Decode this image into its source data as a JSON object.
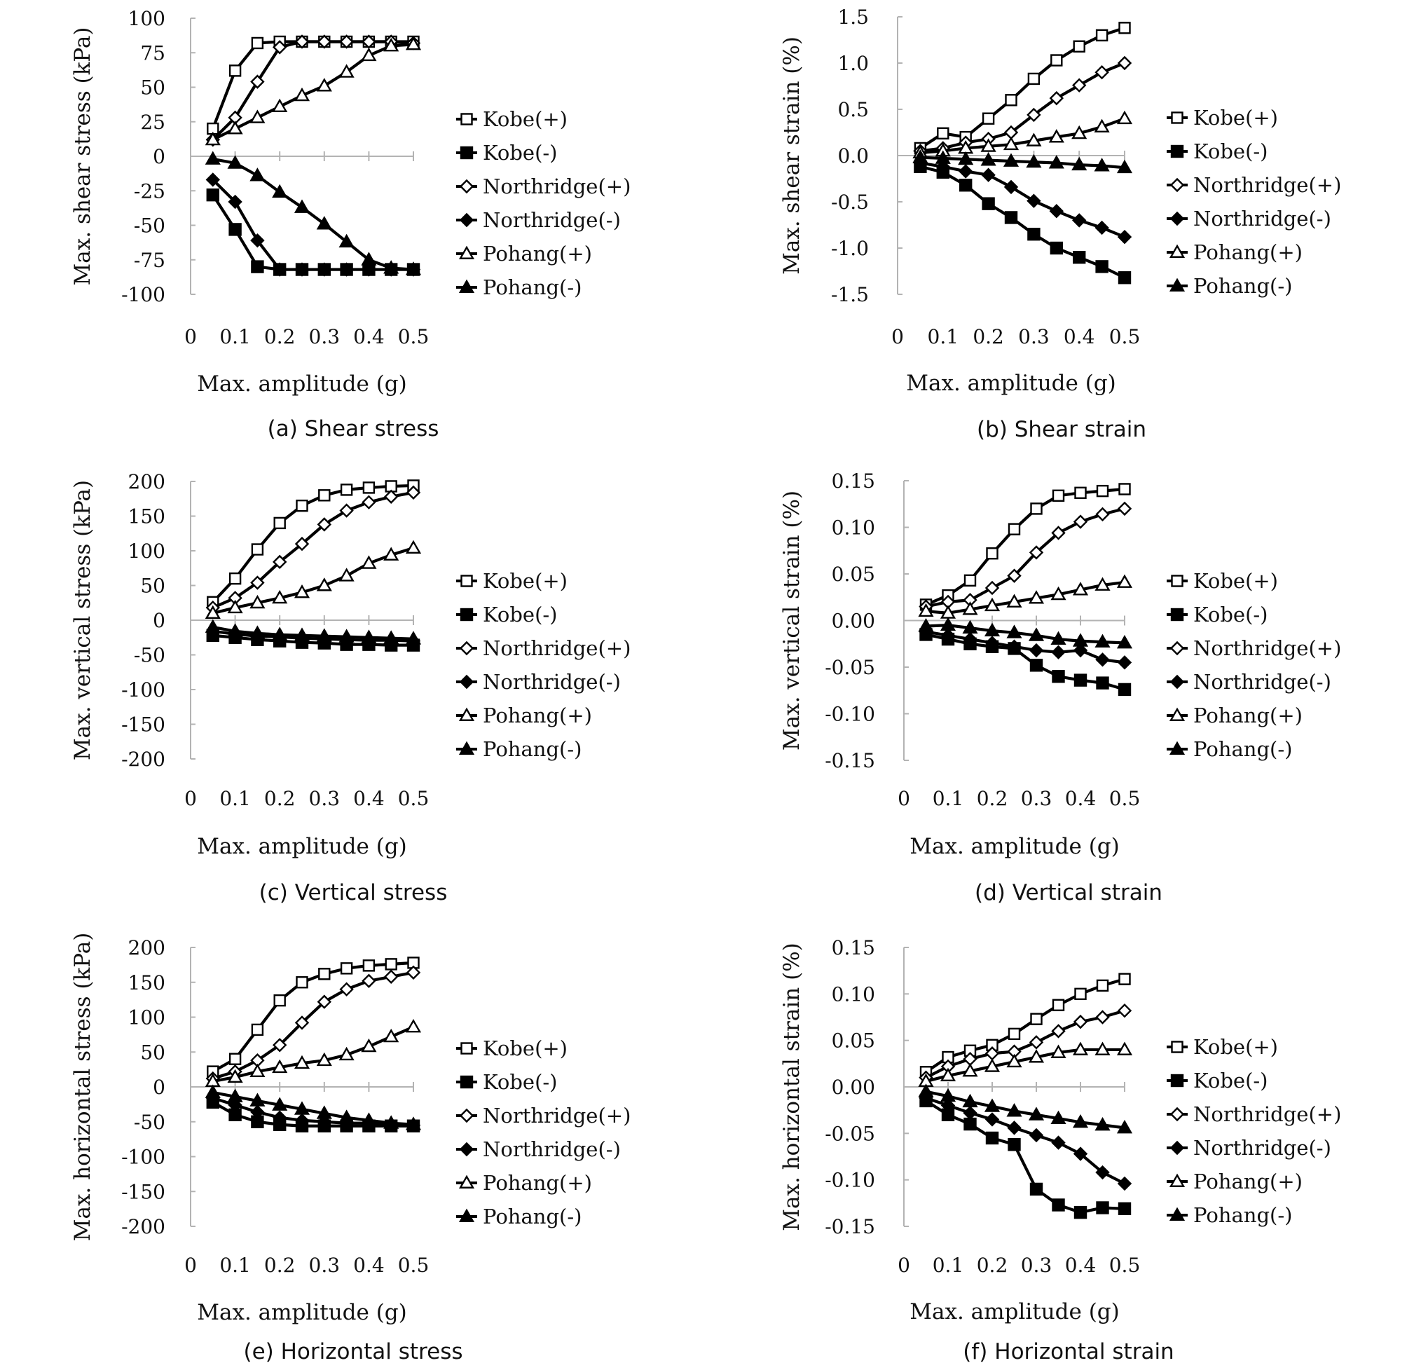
{
  "chart_data": [
    {
      "type": "line",
      "caption": "(a) Shear stress",
      "xlabel": "Max. amplitude (g)",
      "ylabel": "Max. shear stress (kPa)",
      "xlim": [
        0,
        0.5
      ],
      "ylim": [
        -100,
        100
      ],
      "xticks": [
        "0",
        "0.1",
        "0.2",
        "0.3",
        "0.4",
        "0.5"
      ],
      "yticks": [
        "100",
        "75",
        "50",
        "25",
        "0",
        "-25",
        "-50",
        "-75",
        "-100"
      ],
      "x": [
        0.05,
        0.1,
        0.15,
        0.2,
        0.25,
        0.3,
        0.35,
        0.4,
        0.45,
        0.5
      ],
      "legend_position": "right",
      "series": [
        {
          "name": "Kobe(+)",
          "marker": "square-open",
          "values": [
            20,
            62,
            82,
            83,
            83,
            83,
            83,
            83,
            83,
            83
          ]
        },
        {
          "name": "Kobe(-)",
          "marker": "square-filled",
          "values": [
            -28,
            -53,
            -80,
            -82,
            -82,
            -82,
            -82,
            -82,
            -82,
            -82
          ]
        },
        {
          "name": "Northridge(+)",
          "marker": "diamond-open",
          "values": [
            12,
            28,
            54,
            79,
            83,
            83,
            83,
            83,
            83,
            82
          ]
        },
        {
          "name": "Northridge(-)",
          "marker": "diamond-filled",
          "values": [
            -17,
            -33,
            -61,
            -82,
            -82,
            -82,
            -82,
            -82,
            -82,
            -82
          ]
        },
        {
          "name": "Pohang(+)",
          "marker": "triangle-open",
          "values": [
            12,
            20,
            28,
            36,
            44,
            51,
            61,
            73,
            80,
            81
          ]
        },
        {
          "name": "Pohang(-)",
          "marker": "triangle-filled",
          "values": [
            -2,
            -5,
            -14,
            -26,
            -37,
            -49,
            -62,
            -75,
            -81,
            -82
          ]
        }
      ]
    },
    {
      "type": "line",
      "caption": "(b) Shear strain",
      "xlabel": "Max. amplitude (g)",
      "ylabel": "Max. shear strain (%)",
      "xlim": [
        0,
        0.5
      ],
      "ylim": [
        -1.5,
        1.5
      ],
      "xticks": [
        "0",
        "0.1",
        "0.2",
        "0.3",
        "0.4",
        "0.5"
      ],
      "yticks": [
        "1.5",
        "1.0",
        "0.5",
        "0.0",
        "-0.5",
        "-1.0",
        "-1.5"
      ],
      "x": [
        0.05,
        0.1,
        0.15,
        0.2,
        0.25,
        0.3,
        0.35,
        0.4,
        0.45,
        0.5
      ],
      "legend_position": "right",
      "series": [
        {
          "name": "Kobe(+)",
          "marker": "square-open",
          "values": [
            0.08,
            0.24,
            0.2,
            0.4,
            0.6,
            0.83,
            1.03,
            1.18,
            1.3,
            1.38
          ]
        },
        {
          "name": "Kobe(-)",
          "marker": "square-filled",
          "values": [
            -0.12,
            -0.18,
            -0.32,
            -0.52,
            -0.67,
            -0.85,
            -1.0,
            -1.1,
            -1.2,
            -1.32
          ]
        },
        {
          "name": "Northridge(+)",
          "marker": "diamond-open",
          "values": [
            0.05,
            0.08,
            0.14,
            0.18,
            0.25,
            0.44,
            0.62,
            0.76,
            0.9,
            1.0
          ]
        },
        {
          "name": "Northridge(-)",
          "marker": "diamond-filled",
          "values": [
            -0.08,
            -0.12,
            -0.17,
            -0.21,
            -0.34,
            -0.49,
            -0.6,
            -0.7,
            -0.78,
            -0.88
          ]
        },
        {
          "name": "Pohang(+)",
          "marker": "triangle-open",
          "values": [
            0.03,
            0.05,
            0.08,
            0.1,
            0.12,
            0.16,
            0.2,
            0.24,
            0.31,
            0.4
          ]
        },
        {
          "name": "Pohang(-)",
          "marker": "triangle-filled",
          "values": [
            -0.02,
            -0.03,
            -0.04,
            -0.05,
            -0.06,
            -0.07,
            -0.08,
            -0.1,
            -0.11,
            -0.13
          ]
        }
      ]
    },
    {
      "type": "line",
      "caption": "(c) Vertical stress",
      "xlabel": "Max. amplitude (g)",
      "ylabel": "Max. vertical stress (kPa)",
      "xlim": [
        0,
        0.5
      ],
      "ylim": [
        -200,
        200
      ],
      "xticks": [
        "0",
        "0.1",
        "0.2",
        "0.3",
        "0.4",
        "0.5"
      ],
      "yticks": [
        "200",
        "150",
        "100",
        "50",
        "0",
        "-50",
        "-100",
        "-150",
        "-200"
      ],
      "x": [
        0.05,
        0.1,
        0.15,
        0.2,
        0.25,
        0.3,
        0.35,
        0.4,
        0.45,
        0.5
      ],
      "legend_position": "right",
      "series": [
        {
          "name": "Kobe(+)",
          "marker": "square-open",
          "values": [
            26,
            60,
            102,
            140,
            165,
            180,
            188,
            191,
            193,
            194
          ]
        },
        {
          "name": "Kobe(-)",
          "marker": "square-filled",
          "values": [
            -22,
            -25,
            -28,
            -30,
            -32,
            -33,
            -35,
            -35,
            -36,
            -36
          ]
        },
        {
          "name": "Northridge(+)",
          "marker": "diamond-open",
          "values": [
            18,
            32,
            54,
            84,
            110,
            138,
            158,
            170,
            178,
            184
          ]
        },
        {
          "name": "Northridge(-)",
          "marker": "diamond-filled",
          "values": [
            -16,
            -20,
            -23,
            -24,
            -26,
            -27,
            -28,
            -29,
            -29,
            -30
          ]
        },
        {
          "name": "Pohang(+)",
          "marker": "triangle-open",
          "values": [
            10,
            18,
            25,
            32,
            40,
            50,
            64,
            82,
            94,
            104
          ]
        },
        {
          "name": "Pohang(-)",
          "marker": "triangle-filled",
          "values": [
            -10,
            -16,
            -19,
            -21,
            -22,
            -23,
            -24,
            -25,
            -26,
            -27
          ]
        }
      ]
    },
    {
      "type": "line",
      "caption": "(d) Vertical strain",
      "xlabel": "Max. amplitude (g)",
      "ylabel": "Max. vertical strain (%)",
      "xlim": [
        0,
        0.5
      ],
      "ylim": [
        -0.15,
        0.15
      ],
      "xticks": [
        "0",
        "0.1",
        "0.2",
        "0.3",
        "0.4",
        "0.5"
      ],
      "yticks": [
        "0.15",
        "0.10",
        "0.05",
        "0.00",
        "-0.05",
        "-0.10",
        "-0.15"
      ],
      "x": [
        0.05,
        0.1,
        0.15,
        0.2,
        0.25,
        0.3,
        0.35,
        0.4,
        0.45,
        0.5
      ],
      "legend_position": "right",
      "series": [
        {
          "name": "Kobe(+)",
          "marker": "square-open",
          "values": [
            0.017,
            0.027,
            0.043,
            0.072,
            0.098,
            0.12,
            0.134,
            0.137,
            0.139,
            0.141
          ]
        },
        {
          "name": "Kobe(-)",
          "marker": "square-filled",
          "values": [
            -0.015,
            -0.02,
            -0.025,
            -0.028,
            -0.03,
            -0.048,
            -0.06,
            -0.064,
            -0.067,
            -0.074
          ]
        },
        {
          "name": "Northridge(+)",
          "marker": "diamond-open",
          "values": [
            0.015,
            0.02,
            0.022,
            0.035,
            0.048,
            0.073,
            0.094,
            0.106,
            0.114,
            0.12
          ]
        },
        {
          "name": "Northridge(-)",
          "marker": "diamond-filled",
          "values": [
            -0.012,
            -0.016,
            -0.02,
            -0.024,
            -0.028,
            -0.032,
            -0.034,
            -0.032,
            -0.042,
            -0.045
          ]
        },
        {
          "name": "Pohang(+)",
          "marker": "triangle-open",
          "values": [
            0.01,
            0.008,
            0.012,
            0.016,
            0.02,
            0.024,
            0.028,
            0.033,
            0.038,
            0.041
          ]
        },
        {
          "name": "Pohang(-)",
          "marker": "triangle-filled",
          "values": [
            -0.006,
            -0.005,
            -0.008,
            -0.011,
            -0.013,
            -0.016,
            -0.02,
            -0.022,
            -0.023,
            -0.024
          ]
        }
      ]
    },
    {
      "type": "line",
      "caption": "(e) Horizontal stress",
      "xlabel": "Max. amplitude (g)",
      "ylabel": "Max. horizontal stress (kPa)",
      "xlim": [
        0,
        0.5
      ],
      "ylim": [
        -200,
        200
      ],
      "xticks": [
        "0",
        "0.1",
        "0.2",
        "0.3",
        "0.4",
        "0.5"
      ],
      "yticks": [
        "200",
        "150",
        "100",
        "50",
        "0",
        "-50",
        "-100",
        "-150",
        "-200"
      ],
      "x": [
        0.05,
        0.1,
        0.15,
        0.2,
        0.25,
        0.3,
        0.35,
        0.4,
        0.45,
        0.5
      ],
      "legend_position": "right",
      "series": [
        {
          "name": "Kobe(+)",
          "marker": "square-open",
          "values": [
            22,
            40,
            82,
            124,
            150,
            162,
            170,
            174,
            176,
            178
          ]
        },
        {
          "name": "Kobe(-)",
          "marker": "square-filled",
          "values": [
            -22,
            -40,
            -50,
            -54,
            -56,
            -56,
            -56,
            -56,
            -56,
            -56
          ]
        },
        {
          "name": "Northridge(+)",
          "marker": "diamond-open",
          "values": [
            12,
            22,
            38,
            60,
            92,
            122,
            140,
            152,
            158,
            164
          ]
        },
        {
          "name": "Northridge(-)",
          "marker": "diamond-filled",
          "values": [
            -16,
            -26,
            -36,
            -44,
            -48,
            -50,
            -52,
            -52,
            -54,
            -55
          ]
        },
        {
          "name": "Pohang(+)",
          "marker": "triangle-open",
          "values": [
            8,
            14,
            22,
            28,
            34,
            38,
            46,
            58,
            72,
            86
          ]
        },
        {
          "name": "Pohang(-)",
          "marker": "triangle-filled",
          "values": [
            -8,
            -14,
            -20,
            -26,
            -32,
            -38,
            -44,
            -48,
            -52,
            -54
          ]
        }
      ]
    },
    {
      "type": "line",
      "caption": "(f) Horizontal strain",
      "xlabel": "Max. amplitude (g)",
      "ylabel": "Max. horizontal strain (%)",
      "xlim": [
        0,
        0.5
      ],
      "ylim": [
        -0.15,
        0.15
      ],
      "xticks": [
        "0",
        "0.1",
        "0.2",
        "0.3",
        "0.4",
        "0.5"
      ],
      "yticks": [
        "0.15",
        "0.10",
        "0.05",
        "0.00",
        "-0.05",
        "-0.10",
        "-0.15"
      ],
      "x": [
        0.05,
        0.1,
        0.15,
        0.2,
        0.25,
        0.3,
        0.35,
        0.4,
        0.45,
        0.5
      ],
      "legend_position": "right",
      "series": [
        {
          "name": "Kobe(+)",
          "marker": "square-open",
          "values": [
            0.016,
            0.032,
            0.039,
            0.045,
            0.057,
            0.073,
            0.088,
            0.1,
            0.109,
            0.116
          ]
        },
        {
          "name": "Kobe(-)",
          "marker": "square-filled",
          "values": [
            -0.015,
            -0.03,
            -0.04,
            -0.055,
            -0.062,
            -0.11,
            -0.127,
            -0.135,
            -0.13,
            -0.131
          ]
        },
        {
          "name": "Northridge(+)",
          "marker": "diamond-open",
          "values": [
            0.01,
            0.022,
            0.03,
            0.036,
            0.038,
            0.048,
            0.06,
            0.07,
            0.075,
            0.082
          ]
        },
        {
          "name": "Northridge(-)",
          "marker": "diamond-filled",
          "values": [
            -0.012,
            -0.02,
            -0.028,
            -0.035,
            -0.044,
            -0.052,
            -0.06,
            -0.072,
            -0.092,
            -0.104
          ]
        },
        {
          "name": "Pohang(+)",
          "marker": "triangle-open",
          "values": [
            0.006,
            0.012,
            0.017,
            0.022,
            0.027,
            0.032,
            0.037,
            0.04,
            0.04,
            0.04
          ]
        },
        {
          "name": "Pohang(-)",
          "marker": "triangle-filled",
          "values": [
            -0.005,
            -0.01,
            -0.016,
            -0.021,
            -0.026,
            -0.03,
            -0.034,
            -0.038,
            -0.041,
            -0.044
          ]
        }
      ]
    }
  ]
}
